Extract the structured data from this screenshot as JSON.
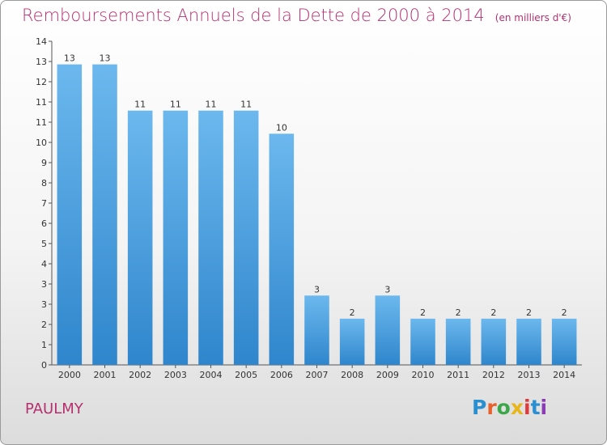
{
  "title": "Remboursements Annuels de la Dette de 2000 à 2014",
  "subtitle": "(en milliers d'€)",
  "commune": "PAULMY",
  "logo": {
    "text": "Proxiti",
    "letter_colors": [
      "#2a8fd0",
      "#e8612c",
      "#3aa84a",
      "#e8b51a",
      "#e03a3a",
      "#2a8fd0",
      "#8a3ab5"
    ]
  },
  "colors": {
    "bar_light": "#6cb8ee",
    "bar_dark": "#2f86cc",
    "title": "#b5306e"
  },
  "chart_data": {
    "type": "bar",
    "categories": [
      "2000",
      "2001",
      "2002",
      "2003",
      "2004",
      "2005",
      "2006",
      "2007",
      "2008",
      "2009",
      "2010",
      "2011",
      "2012",
      "2013",
      "2014"
    ],
    "values": [
      13,
      13,
      11,
      11,
      11,
      11,
      10,
      3,
      2,
      3,
      2,
      2,
      2,
      2,
      2
    ],
    "value_labels": [
      "13",
      "13",
      "11",
      "11",
      "11",
      "11",
      "10",
      "3",
      "2",
      "3",
      "2",
      "2",
      "2",
      "2",
      "2"
    ],
    "title": "Remboursements Annuels de la Dette de 2000 à 2014",
    "subtitle": "(en milliers d'€)",
    "ylim": [
      0,
      14
    ],
    "yticks": [
      "0",
      "1",
      "2",
      "3",
      "3",
      "4",
      "5",
      "6",
      "7",
      "8",
      "9",
      "10",
      "11",
      "11",
      "12",
      "13",
      "14"
    ],
    "grid": false
  }
}
